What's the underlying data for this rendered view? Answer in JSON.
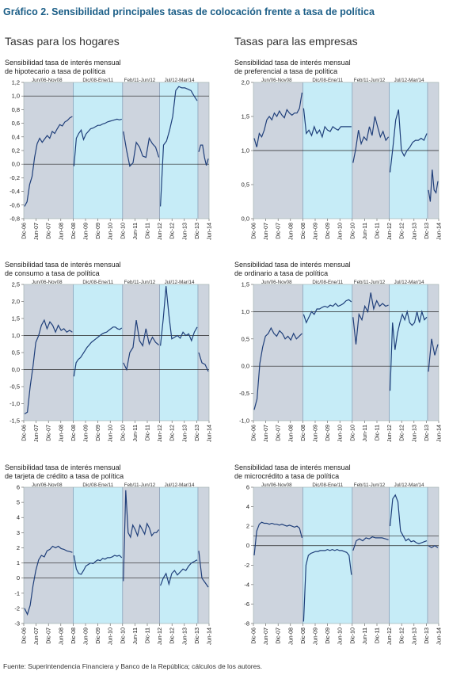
{
  "title": "Gráfico 2. Sensibilidad principales tasas de colocación frente a tasa de política",
  "sections": {
    "left": "Tasas para los hogares",
    "right": "Tasas para las empresas"
  },
  "source": "Fuente: Superintendencia Financiera y Banco de la República; cálculos de los autores.",
  "colors": {
    "grey": "#cdd4de",
    "cyan": "#c6ecf7",
    "line": "#1f3f7a",
    "title": "#1b5e87"
  },
  "x_ticks": [
    "Dic-06",
    "Jun-07",
    "Dic-07",
    "Jun-08",
    "Dic-08",
    "Jun-09",
    "Dic-09",
    "Jun-10",
    "Dic-10",
    "Jun-11",
    "Dic-11",
    "Jun-12",
    "Dic-12",
    "Jun-13",
    "Dic-13",
    "Jun-14"
  ],
  "periods": [
    {
      "label": "Jun/06-Nov08",
      "color": "grey"
    },
    {
      "label": "Dic/08-Ene/11",
      "color": "cyan"
    },
    {
      "label": "Feb/11-Jun/12",
      "color": "grey"
    },
    {
      "label": "Jul/12-Mar/14",
      "color": "cyan"
    },
    {
      "label": "",
      "color": "grey"
    }
  ],
  "chart_data": [
    {
      "type": "line",
      "title": "Sensibilidad tasa de interés mensual\nde hipotecario a tasa de política",
      "ylim": [
        -0.8,
        1.2
      ],
      "yticks": [
        "-0,8",
        "-0,6",
        "-0,4",
        "-0,2",
        "0,0",
        "0,2",
        "0,4",
        "0,6",
        "0,8",
        "1,0",
        "1,2"
      ],
      "reference": 1.0,
      "series": [
        {
          "values": [
            -0.62,
            -0.55,
            -0.3,
            -0.18,
            0.1,
            0.3,
            0.38,
            0.32,
            0.37,
            0.42,
            0.38,
            0.48,
            0.45,
            0.52,
            0.58,
            0.56,
            0.62,
            0.64,
            0.68,
            0.7
          ]
        },
        {
          "values": [
            -0.03,
            0.38,
            0.45,
            0.5,
            0.36,
            0.44,
            0.48,
            0.52,
            0.53,
            0.55,
            0.57,
            0.57,
            0.59,
            0.6,
            0.62,
            0.63,
            0.64,
            0.65,
            0.66,
            0.65,
            0.66
          ]
        },
        {
          "values": [
            0.48,
            0.2,
            -0.03,
            0.02,
            0.32,
            0.25,
            0.12,
            0.1,
            0.38,
            0.3,
            0.25,
            0.1
          ]
        },
        {
          "values": [
            -0.62,
            0.28,
            0.34,
            0.5,
            0.7,
            1.08,
            1.14,
            1.12,
            1.12,
            1.1,
            1.08,
            1.0,
            0.93
          ]
        },
        {
          "values": [
            0.18,
            0.28,
            0.28,
            0.1,
            -0.02,
            0.08
          ]
        }
      ]
    },
    {
      "type": "line",
      "title": "Sensibilidad tasa de interés mensual\nde preferencial a tasa de política",
      "ylim": [
        0.0,
        2.0
      ],
      "yticks": [
        "0,0",
        "0,5",
        "1,0",
        "1,5",
        "2,0"
      ],
      "reference": 1.0,
      "series": [
        {
          "values": [
            1.18,
            1.05,
            1.25,
            1.2,
            1.3,
            1.45,
            1.5,
            1.45,
            1.55,
            1.5,
            1.58,
            1.52,
            1.48,
            1.6,
            1.55,
            1.52,
            1.55,
            1.55,
            1.62,
            1.85
          ]
        },
        {
          "values": [
            1.62,
            1.25,
            1.3,
            1.22,
            1.35,
            1.25,
            1.3,
            1.2,
            1.35,
            1.3,
            1.28,
            1.35,
            1.32,
            1.3,
            1.35,
            1.35,
            1.35,
            1.35,
            1.35
          ]
        },
        {
          "values": [
            0.82,
            1.02,
            1.3,
            1.1,
            1.2,
            1.15,
            1.35,
            1.22,
            1.5,
            1.35,
            1.2,
            1.28,
            1.15,
            1.2
          ]
        },
        {
          "values": [
            0.68,
            1.05,
            1.45,
            1.6,
            1.0,
            0.92,
            1.0,
            1.05,
            1.12,
            1.15,
            1.15,
            1.18,
            1.15,
            1.25
          ]
        },
        {
          "values": [
            0.42,
            0.25,
            0.72,
            0.42,
            0.38,
            0.55
          ]
        }
      ]
    },
    {
      "type": "line",
      "title": "Sensibilidad tasa de interés mensual\nde consumo a tasa de política",
      "ylim": [
        -1.5,
        2.5
      ],
      "yticks": [
        "-1,5",
        "-1,0",
        "-0,5",
        "0,0",
        "0,5",
        "1,0",
        "1,5",
        "2,0",
        "2,5"
      ],
      "reference": 1.0,
      "series": [
        {
          "values": [
            -1.3,
            -1.25,
            -0.5,
            0.1,
            0.8,
            1.0,
            1.3,
            1.45,
            1.2,
            1.4,
            1.3,
            1.1,
            1.3,
            1.15,
            1.2,
            1.1,
            1.15,
            1.1
          ]
        },
        {
          "values": [
            -0.2,
            0.2,
            0.3,
            0.35,
            0.45,
            0.55,
            0.65,
            0.72,
            0.8,
            0.85,
            0.9,
            0.95,
            1.0,
            1.05,
            1.08,
            1.1,
            1.15,
            1.2,
            1.25,
            1.25,
            1.2,
            1.18,
            1.22
          ]
        },
        {
          "values": [
            0.2,
            0.0,
            0.5,
            0.65,
            1.45,
            0.85,
            0.7,
            1.2,
            0.75,
            0.95,
            0.8,
            0.72
          ]
        },
        {
          "values": [
            0.7,
            1.5,
            2.45,
            1.6,
            0.9,
            0.95,
            1.0,
            0.92,
            1.1,
            1.0,
            1.05,
            0.85,
            1.1,
            1.25
          ]
        },
        {
          "values": [
            0.5,
            0.2,
            0.15,
            -0.05
          ]
        }
      ]
    },
    {
      "type": "line",
      "title": "Sensibilidad tasa de interés mensual\nde ordinario a tasa de política",
      "ylim": [
        -1.0,
        1.5
      ],
      "yticks": [
        "-1,0",
        "-0,5",
        "0,0",
        "0,5",
        "1,0",
        "1,5"
      ],
      "reference": 1.0,
      "series": [
        {
          "values": [
            -0.8,
            -0.6,
            0.05,
            0.35,
            0.55,
            0.6,
            0.7,
            0.6,
            0.55,
            0.65,
            0.6,
            0.5,
            0.55,
            0.48,
            0.6,
            0.5,
            0.55,
            0.6
          ]
        },
        {
          "values": [
            0.95,
            0.8,
            0.9,
            1.0,
            0.95,
            1.05,
            1.05,
            1.08,
            1.1,
            1.08,
            1.12,
            1.1,
            1.15,
            1.1,
            1.12,
            1.15,
            1.2,
            1.22,
            1.18
          ]
        },
        {
          "values": [
            0.9,
            0.4,
            0.95,
            0.85,
            1.1,
            1.0,
            1.35,
            1.05,
            1.2,
            1.1,
            1.15,
            1.1,
            1.12
          ]
        },
        {
          "values": [
            -0.45,
            0.8,
            0.3,
            0.6,
            0.8,
            0.95,
            0.85,
            1.0,
            0.8,
            0.75,
            0.8,
            1.0,
            0.8,
            1.0,
            0.85,
            0.9
          ]
        },
        {
          "values": [
            -0.1,
            0.5,
            0.2,
            0.4
          ]
        }
      ]
    },
    {
      "type": "line",
      "title": "Sensibilidad tasa de interés mensual\nde tarjeta de crédito a tasa de política",
      "ylim": [
        -3,
        6
      ],
      "yticks": [
        "-3",
        "-2",
        "-1",
        "0",
        "1",
        "2",
        "3",
        "4",
        "5",
        "6"
      ],
      "reference": 1,
      "series": [
        {
          "values": [
            -2.0,
            -2.4,
            -1.8,
            -0.5,
            0.5,
            1.2,
            1.5,
            1.4,
            1.8,
            1.9,
            2.1,
            2.0,
            2.1,
            1.95,
            1.9,
            1.8,
            1.75,
            1.7
          ]
        },
        {
          "values": [
            1.5,
            0.6,
            0.3,
            0.25,
            0.5,
            0.8,
            0.9,
            1.0,
            0.95,
            1.1,
            1.2,
            1.15,
            1.3,
            1.25,
            1.35,
            1.35,
            1.4,
            1.5,
            1.45,
            1.5,
            1.35
          ]
        },
        {
          "values": [
            -0.2,
            5.8,
            3.0,
            2.7,
            3.5,
            3.2,
            2.8,
            3.5,
            3.2,
            2.9,
            3.6,
            3.3,
            2.8,
            3.0,
            3.0,
            3.2
          ]
        },
        {
          "values": [
            -0.5,
            0.0,
            0.3,
            -0.4,
            0.3,
            0.5,
            0.2,
            0.4,
            0.6,
            0.5,
            0.8,
            1.0,
            1.1,
            1.2
          ]
        },
        {
          "values": [
            1.8,
            0.0,
            -0.3,
            -0.6
          ]
        }
      ]
    },
    {
      "type": "line",
      "title": "Sensibilidad tasa de interés mensual\nde microcrédito a tasa de política",
      "ylim": [
        -8,
        6
      ],
      "yticks": [
        "-8",
        "-6",
        "-4",
        "-2",
        "0",
        "2",
        "4",
        "6"
      ],
      "reference": 1,
      "series": [
        {
          "values": [
            -1.0,
            1.5,
            2.2,
            2.4,
            2.3,
            2.3,
            2.2,
            2.3,
            2.2,
            2.2,
            2.1,
            2.2,
            2.1,
            2.0,
            2.1,
            2.0,
            1.9,
            2.0,
            1.8,
            0.8
          ]
        },
        {
          "values": [
            -7.8,
            -2.0,
            -1.0,
            -0.8,
            -0.7,
            -0.6,
            -0.6,
            -0.5,
            -0.5,
            -0.5,
            -0.4,
            -0.5,
            -0.4,
            -0.5,
            -0.4,
            -0.5,
            -0.5,
            -0.6,
            -0.7,
            -1.0,
            -3.0
          ]
        },
        {
          "values": [
            -0.5,
            0.5,
            0.7,
            0.5,
            0.8,
            0.7,
            0.9,
            0.8,
            0.8,
            0.8,
            0.7,
            0.6
          ]
        },
        {
          "values": [
            2.0,
            4.8,
            5.2,
            4.5,
            1.5,
            1.0,
            0.5,
            0.7,
            0.4,
            0.5,
            0.3,
            0.2,
            0.3,
            0.4,
            0.5
          ]
        },
        {
          "values": [
            0.0,
            -0.2,
            0.0,
            -0.2
          ]
        }
      ]
    }
  ]
}
